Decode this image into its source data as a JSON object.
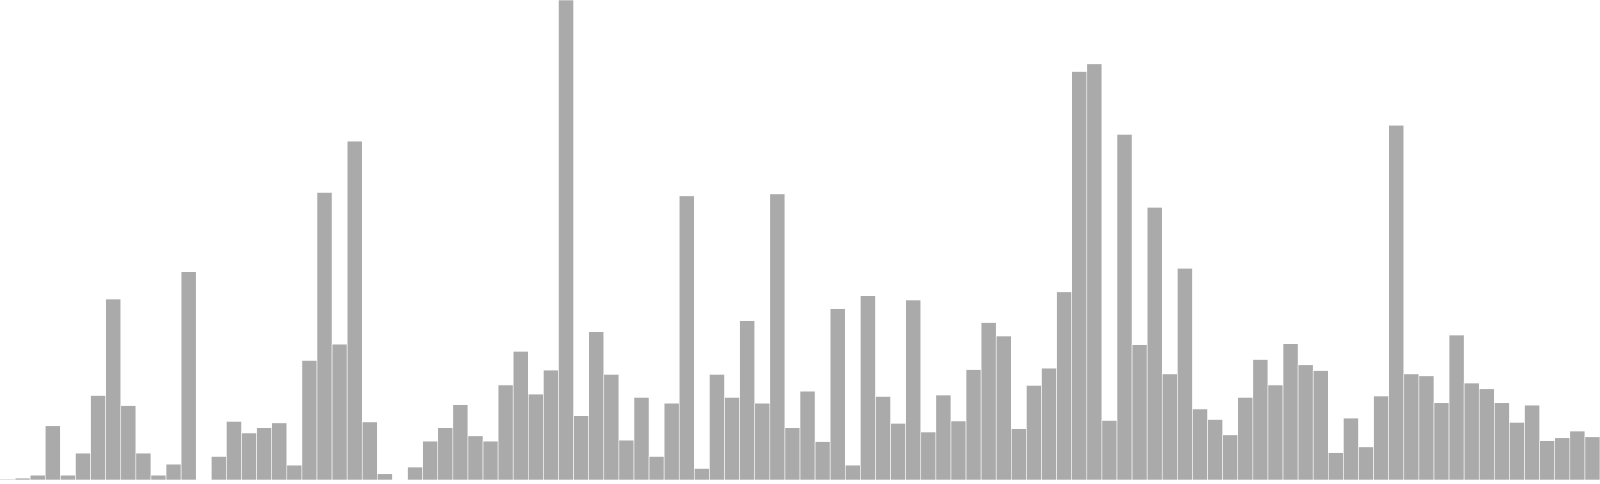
{
  "chart_data": {
    "type": "bar",
    "title": "",
    "xlabel": "",
    "ylabel": "",
    "ylim": [
      0,
      100
    ],
    "grid": false,
    "legend": "none",
    "bar_color": "#aaaaaa",
    "background": "#ffffff",
    "values": [
      0.2,
      0.4,
      1.0,
      11.3,
      1.0,
      5.6,
      17.6,
      37.7,
      15.5,
      5.6,
      1.0,
      3.3,
      43.4,
      0.0,
      4.9,
      12.2,
      9.8,
      10.9,
      11.9,
      3.1,
      24.9,
      59.9,
      28.3,
      70.6,
      12.1,
      1.3,
      0.0,
      2.7,
      8.1,
      10.9,
      15.7,
      9.2,
      8.1,
      19.8,
      26.8,
      17.9,
      22.9,
      100.0,
      13.4,
      30.9,
      22.0,
      8.3,
      17.2,
      4.9,
      16.0,
      59.2,
      2.4,
      22.0,
      17.2,
      33.2,
      16.0,
      59.6,
      10.9,
      18.5,
      8.0,
      35.7,
      3.1,
      38.4,
      17.4,
      11.8,
      37.5,
      10.0,
      17.7,
      12.3,
      23.0,
      32.8,
      30.0,
      10.7,
      19.7,
      23.3,
      39.2,
      85.1,
      86.7,
      12.4,
      72.0,
      28.2,
      56.8,
      22.1,
      44.1,
      14.8,
      12.6,
      9.4,
      17.2,
      25.1,
      19.8,
      28.4,
      24.0,
      22.8,
      5.7,
      12.9,
      6.9,
      17.5,
      73.9,
      22.1,
      21.7,
      16.1,
      30.2,
      20.2,
      19.0,
      16.1,
      12.0,
      15.6,
      8.2,
      8.8,
      10.2,
      9.0
    ]
  }
}
